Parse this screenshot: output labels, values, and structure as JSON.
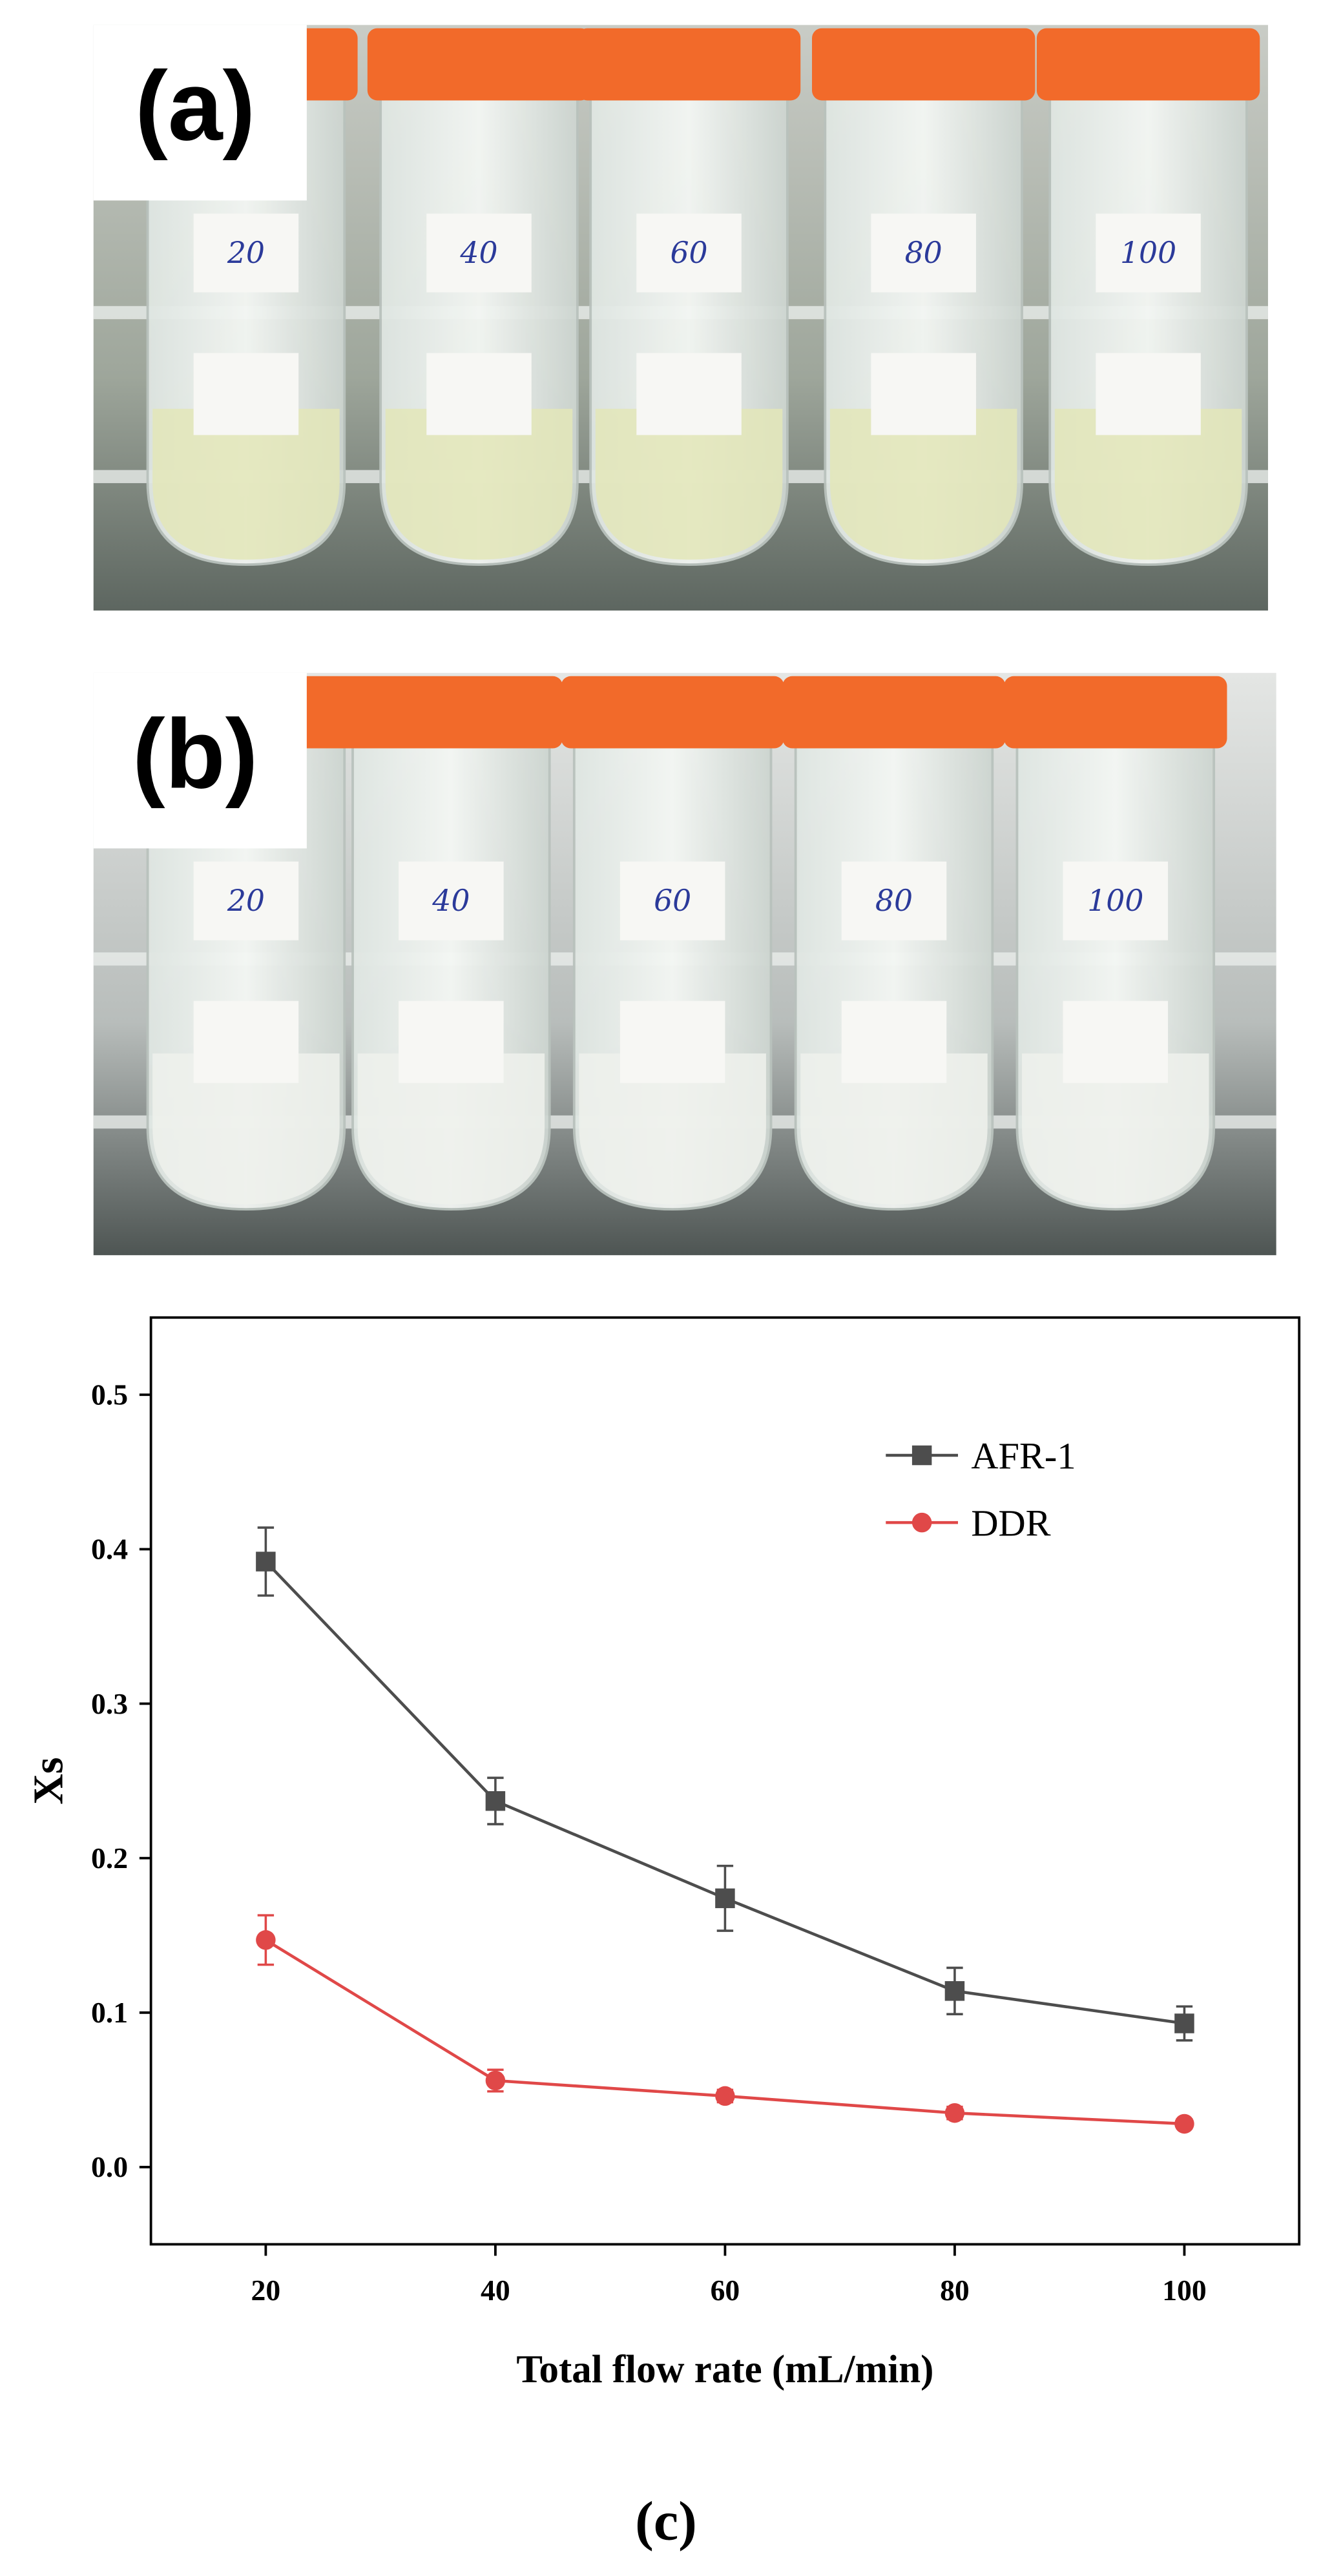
{
  "panels": [
    {
      "label": "(a)",
      "tubes": [
        "20",
        "40",
        "60",
        "80",
        "100"
      ]
    },
    {
      "label": "(b)",
      "tubes": [
        "20",
        "40",
        "60",
        "80",
        "100"
      ]
    }
  ],
  "chart_data": {
    "type": "line",
    "xlabel": "Total flow rate (mL/min)",
    "ylabel": "Xs",
    "x": [
      20,
      40,
      60,
      80,
      100
    ],
    "series": [
      {
        "name": "AFR-1",
        "color": "#4d4d4d",
        "marker": "square",
        "values": [
          0.392,
          0.237,
          0.174,
          0.114,
          0.093
        ],
        "errors": [
          0.022,
          0.015,
          0.021,
          0.015,
          0.011
        ]
      },
      {
        "name": "DDR",
        "color": "#e04848",
        "marker": "circle",
        "values": [
          0.147,
          0.056,
          0.046,
          0.035,
          0.028
        ],
        "errors": [
          0.016,
          0.007,
          0.004,
          0.004,
          0.003
        ]
      }
    ],
    "xlim": [
      10,
      110
    ],
    "ylim": [
      -0.05,
      0.55
    ],
    "xticks": [
      20,
      40,
      60,
      80,
      100
    ],
    "yticks": [
      {
        "value": 0,
        "label": "0.0"
      },
      0.1,
      0.2,
      0.3,
      0.4,
      0.5
    ],
    "legend": "upper right"
  },
  "caption": "(c)"
}
